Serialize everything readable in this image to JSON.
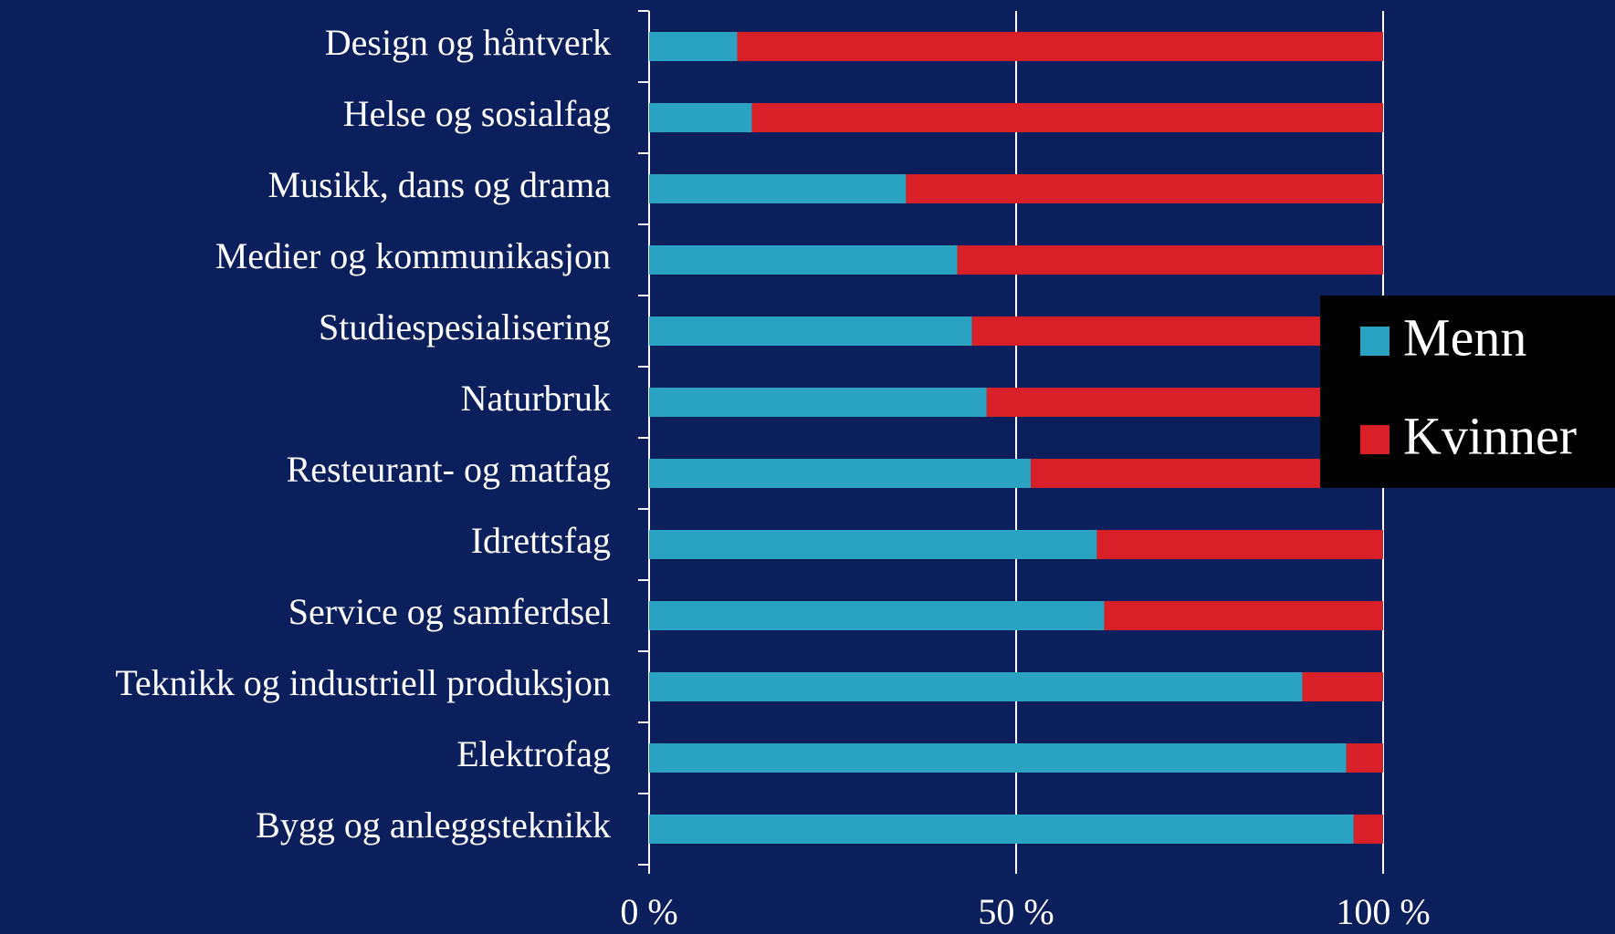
{
  "chart_data": {
    "type": "stacked-bar-horizontal",
    "categories": [
      "Design og håntverk",
      "Helse og sosialfag",
      "Musikk, dans og drama",
      "Medier og kommunikasjon",
      "Studiespesialisering",
      "Naturbruk",
      "Resteurant- og matfag",
      "Idrettsfag",
      "Service og samferdsel",
      "Teknikk og industriell produksjon",
      "Elektrofag",
      "Bygg og anleggsteknikk"
    ],
    "series": [
      {
        "name": "Menn",
        "color": "#2aa3c2",
        "values": [
          12,
          14,
          35,
          42,
          44,
          46,
          52,
          61,
          62,
          89,
          95,
          96
        ]
      },
      {
        "name": "Kvinner",
        "color": "#d92029",
        "values": [
          88,
          86,
          65,
          58,
          56,
          54,
          48,
          39,
          38,
          11,
          5,
          4
        ]
      }
    ],
    "xlim": [
      0,
      100
    ],
    "xticks": [
      {
        "value": 0,
        "label": "0 %"
      },
      {
        "value": 50,
        "label": "50 %"
      },
      {
        "value": 100,
        "label": "100 %"
      }
    ],
    "grid": true,
    "legend": "right"
  }
}
